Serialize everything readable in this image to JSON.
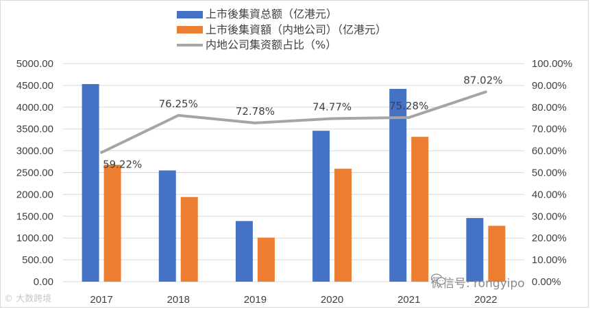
{
  "chart_data": {
    "type": "bar+line",
    "categories": [
      "2017",
      "2018",
      "2019",
      "2020",
      "2021",
      "2022"
    ],
    "series": [
      {
        "name": "上市後集資总额（亿港元）",
        "kind": "bar",
        "axis": "left",
        "color": "#4472C4",
        "values": [
          4530,
          2550,
          1390,
          3460,
          4420,
          1460
        ]
      },
      {
        "name": "上市後集資額（内地公司）（亿港元）",
        "kind": "bar",
        "axis": "left",
        "color": "#ED7D31",
        "values": [
          2680,
          1940,
          1010,
          2590,
          3320,
          1280
        ]
      },
      {
        "name": "内地公司集资额占比（%）",
        "kind": "line",
        "axis": "right",
        "color": "#A5A5A5",
        "values": [
          59.22,
          76.25,
          72.78,
          74.77,
          75.28,
          87.02
        ],
        "labels": [
          "59.22%",
          "76.25%",
          "72.78%",
          "74.77%",
          "75.28%",
          "87.02%"
        ]
      }
    ],
    "y_left": {
      "min": 0,
      "max": 5000,
      "step": 500,
      "ticks": [
        "0.00",
        "500.00",
        "1000.00",
        "1500.00",
        "2000.00",
        "2500.00",
        "3000.00",
        "3500.00",
        "4000.00",
        "4500.00",
        "5000.00"
      ]
    },
    "y_right": {
      "min": 0,
      "max": 100,
      "step": 10,
      "ticks": [
        "0.00%",
        "10.00%",
        "20.00%",
        "30.00%",
        "40.00%",
        "50.00%",
        "60.00%",
        "70.00%",
        "80.00%",
        "90.00%",
        "100.00%"
      ]
    },
    "grid": true,
    "legend_position": "top-center"
  },
  "legend": {
    "item1": "上市後集資总额（亿港元）",
    "item2": "上市後集資額（内地公司）（亿港元）",
    "item3": "内地公司集资额占比（%）"
  },
  "watermark": {
    "left": "大数跨境",
    "right": "微信号: rongyipo"
  }
}
